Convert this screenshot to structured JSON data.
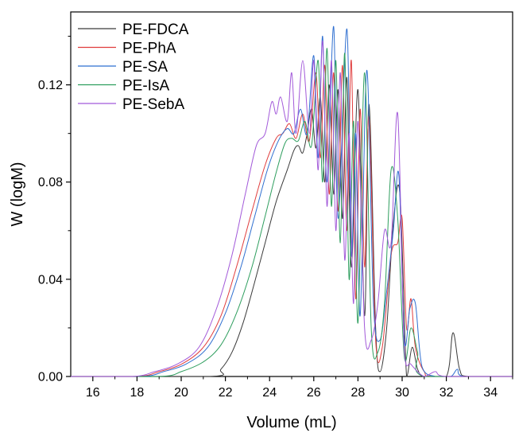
{
  "chart_data": {
    "type": "line",
    "title": "",
    "xlabel": "Volume (mL)",
    "ylabel": "W (logM)",
    "xlim": [
      15,
      35
    ],
    "ylim": [
      0,
      0.15
    ],
    "xticks": [
      16,
      18,
      20,
      22,
      24,
      26,
      28,
      30,
      32,
      34
    ],
    "xtick_labels": [
      "16",
      "18",
      "20",
      "22",
      "24",
      "26",
      "28",
      "30",
      "32",
      "34"
    ],
    "yticks": [
      0.0,
      0.04,
      0.08,
      0.12
    ],
    "ytick_labels": [
      "0.00",
      "0.04",
      "0.08",
      "0.12"
    ],
    "grid": false,
    "legend_position": "top-left",
    "series": [
      {
        "name": "PE-FDCA",
        "color": "#3a3a3a",
        "points": [
          [
            15,
            0
          ],
          [
            21.3,
            0
          ],
          [
            21.8,
            0.003
          ],
          [
            22.3,
            0.01
          ],
          [
            22.8,
            0.022
          ],
          [
            23.3,
            0.038
          ],
          [
            23.8,
            0.055
          ],
          [
            24.3,
            0.072
          ],
          [
            24.8,
            0.085
          ],
          [
            25.1,
            0.093
          ],
          [
            25.3,
            0.095
          ],
          [
            25.5,
            0.092
          ],
          [
            25.7,
            0.1
          ],
          [
            25.9,
            0.11
          ],
          [
            26.1,
            0.094
          ],
          [
            26.3,
            0.115
          ],
          [
            26.5,
            0.08
          ],
          [
            26.7,
            0.12
          ],
          [
            26.9,
            0.075
          ],
          [
            27.1,
            0.118
          ],
          [
            27.3,
            0.065
          ],
          [
            27.5,
            0.123
          ],
          [
            27.7,
            0.045
          ],
          [
            28.0,
            0.118
          ],
          [
            28.3,
            0.025
          ],
          [
            28.5,
            0.112
          ],
          [
            28.8,
            0.02
          ],
          [
            29.0,
            0.002
          ],
          [
            29.3,
            0.02
          ],
          [
            29.6,
            0.063
          ],
          [
            29.9,
            0.075
          ],
          [
            30.2,
            0.0
          ],
          [
            30.45,
            0.012
          ],
          [
            30.7,
            0.003
          ],
          [
            31.0,
            0.0
          ],
          [
            32.0,
            0.0
          ],
          [
            32.3,
            0.018
          ],
          [
            32.6,
            0.003
          ],
          [
            33.0,
            0.0
          ],
          [
            35,
            0
          ]
        ]
      },
      {
        "name": "PE-PhA",
        "color": "#e03c3c",
        "points": [
          [
            15,
            0
          ],
          [
            18.0,
            0
          ],
          [
            19.0,
            0.002
          ],
          [
            20.0,
            0.005
          ],
          [
            21.0,
            0.012
          ],
          [
            21.8,
            0.025
          ],
          [
            22.5,
            0.045
          ],
          [
            23.2,
            0.068
          ],
          [
            23.8,
            0.087
          ],
          [
            24.3,
            0.098
          ],
          [
            24.6,
            0.1
          ],
          [
            24.9,
            0.104
          ],
          [
            25.2,
            0.098
          ],
          [
            25.5,
            0.108
          ],
          [
            25.8,
            0.097
          ],
          [
            26.1,
            0.125
          ],
          [
            26.3,
            0.09
          ],
          [
            26.5,
            0.128
          ],
          [
            26.7,
            0.075
          ],
          [
            26.9,
            0.125
          ],
          [
            27.1,
            0.068
          ],
          [
            27.3,
            0.128
          ],
          [
            27.5,
            0.06
          ],
          [
            27.7,
            0.13
          ],
          [
            27.9,
            0.032
          ],
          [
            28.1,
            0.11
          ],
          [
            28.3,
            0.045
          ],
          [
            28.5,
            0.107
          ],
          [
            28.8,
            0.015
          ],
          [
            29.1,
            0.012
          ],
          [
            29.5,
            0.05
          ],
          [
            29.8,
            0.055
          ],
          [
            30.0,
            0.065
          ],
          [
            30.2,
            0.02
          ],
          [
            30.4,
            0.032
          ],
          [
            30.6,
            0.012
          ],
          [
            31.0,
            0.002
          ],
          [
            31.5,
            0.0
          ],
          [
            35,
            0
          ]
        ]
      },
      {
        "name": "PE-SA",
        "color": "#2f6fd0",
        "points": [
          [
            15,
            0
          ],
          [
            18.2,
            0
          ],
          [
            19.2,
            0.002
          ],
          [
            20.2,
            0.005
          ],
          [
            21.2,
            0.012
          ],
          [
            22.0,
            0.026
          ],
          [
            22.7,
            0.045
          ],
          [
            23.3,
            0.065
          ],
          [
            23.9,
            0.085
          ],
          [
            24.4,
            0.097
          ],
          [
            24.8,
            0.102
          ],
          [
            25.1,
            0.1
          ],
          [
            25.4,
            0.11
          ],
          [
            25.7,
            0.1
          ],
          [
            26.0,
            0.132
          ],
          [
            26.2,
            0.09
          ],
          [
            26.4,
            0.14
          ],
          [
            26.6,
            0.08
          ],
          [
            26.9,
            0.144
          ],
          [
            27.1,
            0.065
          ],
          [
            27.5,
            0.143
          ],
          [
            27.7,
            0.05
          ],
          [
            27.9,
            0.1
          ],
          [
            28.1,
            0.025
          ],
          [
            28.4,
            0.126
          ],
          [
            28.7,
            0.03
          ],
          [
            29.0,
            0.015
          ],
          [
            29.3,
            0.035
          ],
          [
            29.6,
            0.06
          ],
          [
            29.85,
            0.083
          ],
          [
            30.1,
            0.015
          ],
          [
            30.35,
            0.028
          ],
          [
            30.6,
            0.03
          ],
          [
            30.9,
            0.004
          ],
          [
            31.5,
            0.0
          ],
          [
            32.2,
            0.0
          ],
          [
            32.5,
            0.003
          ],
          [
            32.8,
            0.0
          ],
          [
            35,
            0
          ]
        ]
      },
      {
        "name": "PE-IsA",
        "color": "#2e9e5e",
        "points": [
          [
            15,
            0
          ],
          [
            19.0,
            0
          ],
          [
            20.0,
            0.002
          ],
          [
            21.0,
            0.006
          ],
          [
            21.8,
            0.013
          ],
          [
            22.5,
            0.026
          ],
          [
            23.2,
            0.045
          ],
          [
            23.8,
            0.066
          ],
          [
            24.3,
            0.084
          ],
          [
            24.7,
            0.096
          ],
          [
            25.0,
            0.098
          ],
          [
            25.3,
            0.097
          ],
          [
            25.6,
            0.105
          ],
          [
            25.9,
            0.095
          ],
          [
            26.2,
            0.13
          ],
          [
            26.4,
            0.08
          ],
          [
            26.6,
            0.135
          ],
          [
            26.8,
            0.07
          ],
          [
            27.0,
            0.13
          ],
          [
            27.2,
            0.055
          ],
          [
            27.4,
            0.133
          ],
          [
            27.6,
            0.04
          ],
          [
            27.8,
            0.105
          ],
          [
            28.0,
            0.022
          ],
          [
            28.3,
            0.125
          ],
          [
            28.6,
            0.02
          ],
          [
            28.9,
            0.01
          ],
          [
            29.2,
            0.03
          ],
          [
            29.5,
            0.085
          ],
          [
            29.8,
            0.065
          ],
          [
            30.1,
            0.008
          ],
          [
            30.4,
            0.02
          ],
          [
            30.7,
            0.01
          ],
          [
            31.0,
            0.0
          ],
          [
            35,
            0
          ]
        ]
      },
      {
        "name": "PE-SebA",
        "color": "#a259d9",
        "points": [
          [
            15,
            0
          ],
          [
            17.8,
            0
          ],
          [
            18.8,
            0.002
          ],
          [
            19.8,
            0.005
          ],
          [
            20.8,
            0.012
          ],
          [
            21.6,
            0.028
          ],
          [
            22.3,
            0.05
          ],
          [
            22.9,
            0.075
          ],
          [
            23.4,
            0.095
          ],
          [
            23.8,
            0.1
          ],
          [
            24.1,
            0.113
          ],
          [
            24.3,
            0.108
          ],
          [
            24.5,
            0.115
          ],
          [
            24.8,
            0.105
          ],
          [
            25.0,
            0.125
          ],
          [
            25.2,
            0.1
          ],
          [
            25.5,
            0.13
          ],
          [
            25.8,
            0.1
          ],
          [
            26.0,
            0.13
          ],
          [
            26.2,
            0.085
          ],
          [
            26.4,
            0.138
          ],
          [
            26.6,
            0.07
          ],
          [
            26.8,
            0.13
          ],
          [
            27.0,
            0.06
          ],
          [
            27.2,
            0.125
          ],
          [
            27.4,
            0.048
          ],
          [
            27.6,
            0.1
          ],
          [
            27.8,
            0.03
          ],
          [
            28.0,
            0.105
          ],
          [
            28.3,
            0.02
          ],
          [
            28.6,
            0.015
          ],
          [
            28.9,
            0.03
          ],
          [
            29.2,
            0.06
          ],
          [
            29.5,
            0.055
          ],
          [
            29.8,
            0.108
          ],
          [
            30.1,
            0.01
          ],
          [
            30.4,
            0.005
          ],
          [
            31.0,
            0.0
          ],
          [
            31.5,
            0.002
          ],
          [
            32.0,
            0.0
          ],
          [
            35,
            0
          ]
        ]
      }
    ]
  }
}
